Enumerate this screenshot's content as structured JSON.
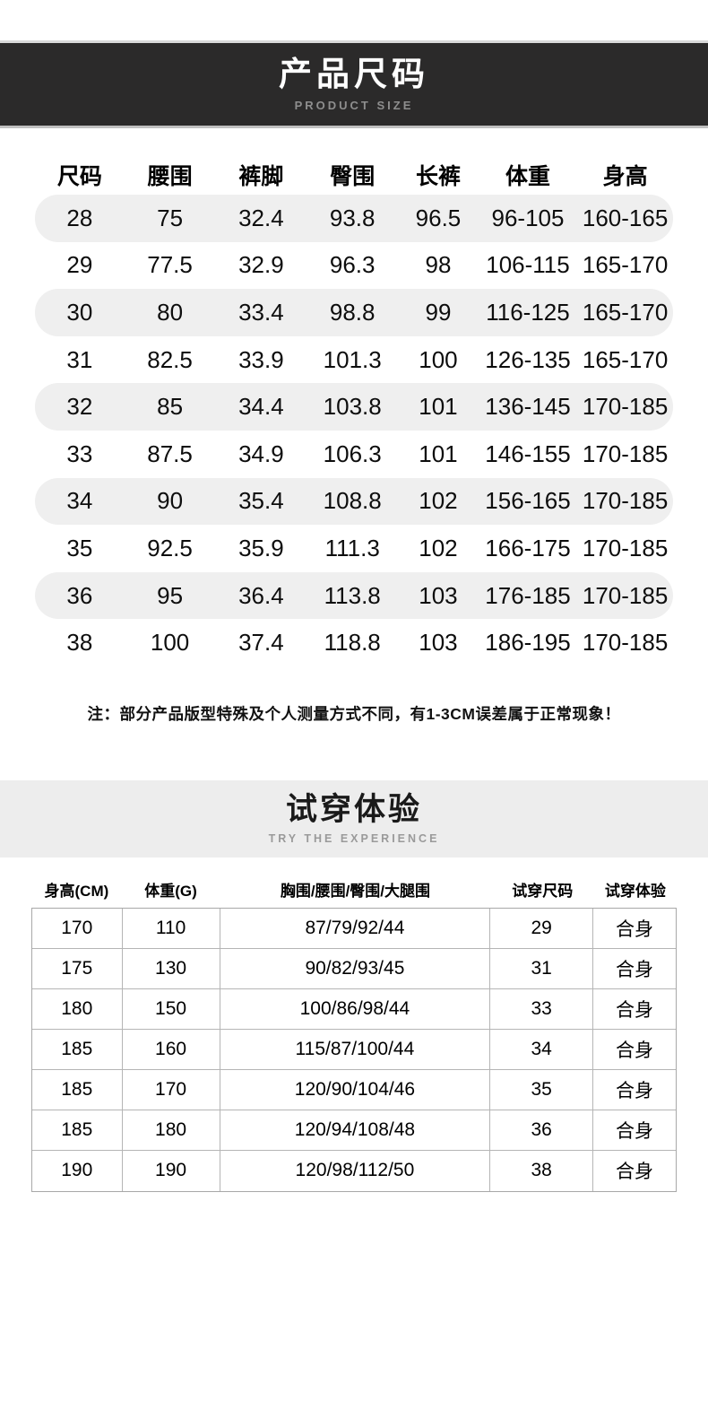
{
  "section1": {
    "title": "产品尺码",
    "subtitle": "PRODUCT SIZE",
    "table": {
      "headers": [
        "尺码",
        "腰围",
        "裤脚",
        "臀围",
        "长裤",
        "体重",
        "身高"
      ],
      "rows": [
        [
          "28",
          "75",
          "32.4",
          "93.8",
          "96.5",
          "96-105",
          "160-165"
        ],
        [
          "29",
          "77.5",
          "32.9",
          "96.3",
          "98",
          "106-115",
          "165-170"
        ],
        [
          "30",
          "80",
          "33.4",
          "98.8",
          "99",
          "116-125",
          "165-170"
        ],
        [
          "31",
          "82.5",
          "33.9",
          "101.3",
          "100",
          "126-135",
          "165-170"
        ],
        [
          "32",
          "85",
          "34.4",
          "103.8",
          "101",
          "136-145",
          "170-185"
        ],
        [
          "33",
          "87.5",
          "34.9",
          "106.3",
          "101",
          "146-155",
          "170-185"
        ],
        [
          "34",
          "90",
          "35.4",
          "108.8",
          "102",
          "156-165",
          "170-185"
        ],
        [
          "35",
          "92.5",
          "35.9",
          "111.3",
          "102",
          "166-175",
          "170-185"
        ],
        [
          "36",
          "95",
          "36.4",
          "113.8",
          "103",
          "176-185",
          "170-185"
        ],
        [
          "38",
          "100",
          "37.4",
          "118.8",
          "103",
          "186-195",
          "170-185"
        ]
      ]
    },
    "note": "注：部分产品版型特殊及个人测量方式不同，有1-3CM误差属于正常现象！"
  },
  "section2": {
    "title": "试穿体验",
    "subtitle": "TRY THE EXPERIENCE",
    "table": {
      "headers": [
        "身高(CM)",
        "体重(G)",
        "胸围/腰围/臀围/大腿围",
        "试穿尺码",
        "试穿体验"
      ],
      "rows": [
        [
          "170",
          "110",
          "87/79/92/44",
          "29",
          "合身"
        ],
        [
          "175",
          "130",
          "90/82/93/45",
          "31",
          "合身"
        ],
        [
          "180",
          "150",
          "100/86/98/44",
          "33",
          "合身"
        ],
        [
          "185",
          "160",
          "115/87/100/44",
          "34",
          "合身"
        ],
        [
          "185",
          "170",
          "120/90/104/46",
          "35",
          "合身"
        ],
        [
          "185",
          "180",
          "120/94/108/48",
          "36",
          "合身"
        ],
        [
          "190",
          "190",
          "120/98/112/50",
          "38",
          "合身"
        ]
      ]
    }
  },
  "colors": {
    "banner_background": "#2b2a2a",
    "banner_title": "#ffffff",
    "banner_subtitle": "#8e8e8e",
    "row_stripe": "#efefef",
    "section2_band": "#ededed",
    "table_border": "#b5b5b5",
    "text": "#0d0d0d"
  }
}
